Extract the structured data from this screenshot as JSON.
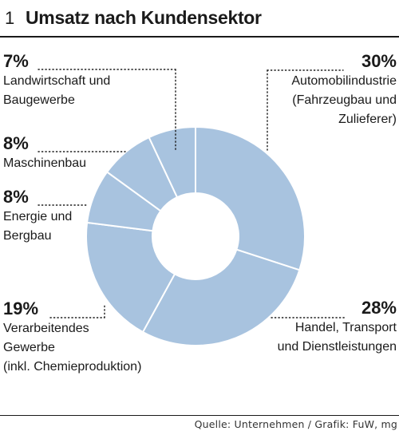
{
  "header": {
    "number": "1",
    "title": "Umsatz nach Kundensektor"
  },
  "footer": {
    "source": "Quelle: Unternehmen / Grafik: FuW, mg"
  },
  "colors": {
    "slice": "#a8c3df",
    "stroke": "#ffffff",
    "text": "#1a1a1a",
    "leader": "#1a1a1a"
  },
  "chart_data": {
    "type": "pie",
    "style": "donut",
    "title": "Umsatz nach Kundensektor",
    "unit": "%",
    "slices": [
      {
        "value": 30,
        "label": "30%",
        "name_lines": [
          "Automobilindustrie",
          "(Fahrzeugbau und",
          "Zulieferer)"
        ]
      },
      {
        "value": 28,
        "label": "28%",
        "name_lines": [
          "Handel, Transport",
          "und Dienstleistungen"
        ]
      },
      {
        "value": 19,
        "label": "19%",
        "name_lines": [
          "Verarbeitendes",
          "Gewerbe",
          "(inkl. Chemieproduktion)"
        ]
      },
      {
        "value": 8,
        "label": "8%",
        "name_lines": [
          "Energie und",
          "Bergbau"
        ]
      },
      {
        "value": 8,
        "label": "8%",
        "name_lines": [
          "Maschinenbau"
        ]
      },
      {
        "value": 7,
        "label": "7%",
        "name_lines": [
          "Landwirtschaft und",
          "Baugewerbe"
        ]
      }
    ]
  }
}
